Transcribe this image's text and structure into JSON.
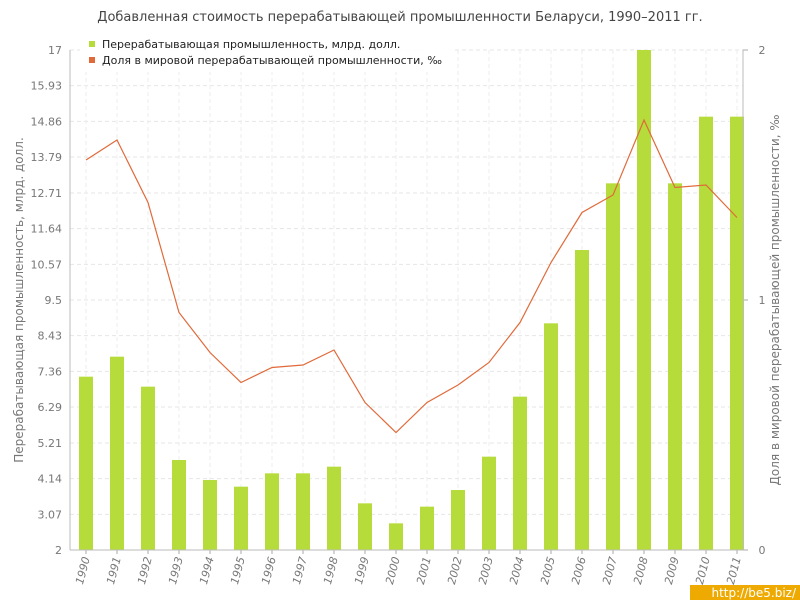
{
  "chart_data": {
    "type": "bar",
    "title": "Добавленная стоимость перерабатывающей промышленности Беларуси, 1990–2011 гг.",
    "categories": [
      "1990",
      "1991",
      "1992",
      "1993",
      "1994",
      "1995",
      "1996",
      "1997",
      "1998",
      "1999",
      "2000",
      "2001",
      "2002",
      "2003",
      "2004",
      "2005",
      "2006",
      "2007",
      "2008",
      "2009",
      "2010",
      "2011"
    ],
    "series": [
      {
        "name": "Перерабатывающая промышленность, млрд. долл.",
        "type": "bar",
        "axis": "left",
        "color": "#b5dc3a",
        "values": [
          7.2,
          7.8,
          6.9,
          4.7,
          4.1,
          3.9,
          4.3,
          4.3,
          4.5,
          3.4,
          2.8,
          3.3,
          3.8,
          4.8,
          6.6,
          8.8,
          11.0,
          13.0,
          17.0,
          13.0,
          15.0,
          15.0
        ]
      },
      {
        "name": "Доля в мировой перерабатывающей промышленности, ‰",
        "type": "line",
        "axis": "right",
        "color": "#e06a3a",
        "values": [
          1.56,
          1.64,
          1.39,
          0.95,
          0.79,
          0.67,
          0.73,
          0.74,
          0.8,
          0.59,
          0.47,
          0.59,
          0.66,
          0.75,
          0.91,
          1.15,
          1.35,
          1.42,
          1.72,
          1.45,
          1.46,
          1.33
        ]
      }
    ],
    "ylabel": "Перерабатывающая промышленность, млрд. долл.",
    "y2label": "Доля в мировой перерабатывающей промышленности, ‰",
    "ylim": [
      2,
      17
    ],
    "y2lim": [
      0,
      2
    ],
    "yticks": [
      "2",
      "3.07",
      "4.14",
      "5.21",
      "6.29",
      "7.36",
      "8.43",
      "9.5",
      "10.57",
      "11.64",
      "12.71",
      "13.79",
      "14.86",
      "15.93",
      "17"
    ],
    "y2ticks": [
      "0",
      "1",
      "2"
    ],
    "grid": true,
    "legend_position": "top-left"
  },
  "watermark": "http://be5.biz/"
}
